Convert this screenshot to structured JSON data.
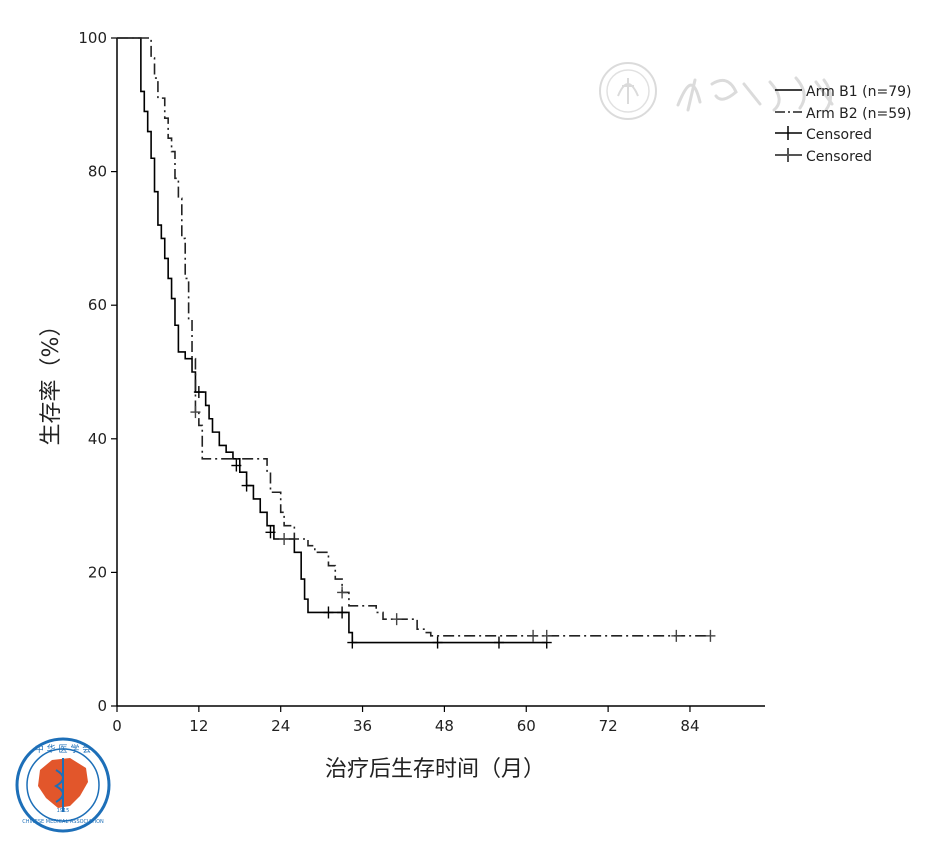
{
  "chart_data": {
    "type": "line",
    "subtype": "kaplan-meier step plot",
    "title": "",
    "xlabel": "治疗后生存时间（月）",
    "ylabel": "生存率（%）",
    "xlim": [
      0,
      95
    ],
    "ylim": [
      0,
      100
    ],
    "xticks": [
      0,
      12,
      24,
      36,
      48,
      60,
      72,
      84
    ],
    "yticks": [
      0,
      20,
      40,
      60,
      80,
      100
    ],
    "grid": false,
    "legend_position": "top-right",
    "legend": [
      {
        "label": "Arm B1 (n=79)",
        "style": "solid"
      },
      {
        "label": "Arm B2 (n=59)",
        "style": "dash-dot"
      },
      {
        "label": "Censored",
        "style": "censor-mark-dark"
      },
      {
        "label": "Censored",
        "style": "censor-mark-grey"
      }
    ],
    "series": [
      {
        "name": "Arm B1 (n=79)",
        "style": "solid",
        "color": "#000000",
        "x": [
          0,
          3.5,
          4,
          4.5,
          5,
          5.5,
          6,
          6.5,
          7,
          7.5,
          8,
          8.5,
          9,
          10,
          11,
          11.5,
          12,
          13,
          13.5,
          14,
          15,
          16,
          17,
          18,
          19,
          20,
          21,
          22,
          23,
          24,
          25,
          26,
          27,
          27.5,
          28,
          33,
          34,
          34.5,
          63
        ],
        "y": [
          100,
          92,
          89,
          86,
          82,
          77,
          72,
          70,
          67,
          64,
          61,
          57,
          53,
          52,
          50,
          47,
          47,
          45,
          43,
          41,
          39,
          38,
          37,
          35,
          33,
          31,
          29,
          27,
          25,
          25,
          25,
          23,
          19,
          16,
          14,
          14,
          11,
          9.5,
          9.5
        ]
      },
      {
        "name": "Arm B2 (n=59)",
        "style": "dash-dot",
        "color": "#222222",
        "x": [
          0,
          5,
          5.5,
          6,
          7,
          7.5,
          8,
          8.5,
          9,
          9.5,
          10,
          10.5,
          11,
          11.5,
          12,
          12.5,
          17,
          22,
          22.5,
          24,
          24.5,
          25.5,
          26,
          27,
          28,
          29,
          31,
          32,
          33,
          34,
          35,
          37,
          38,
          39,
          41,
          43,
          44,
          45,
          46,
          87
        ],
        "y": [
          100,
          97,
          94,
          91,
          88,
          85,
          83,
          79,
          76,
          70,
          64,
          58,
          52,
          44,
          42,
          37,
          37,
          35,
          32,
          29,
          27,
          27,
          25,
          25,
          24,
          23,
          21,
          19,
          17,
          15,
          15,
          15,
          14,
          13,
          13,
          13,
          11.5,
          11,
          10.5,
          10.5
        ]
      }
    ],
    "censored_marks": [
      {
        "series": "Arm B1 (n=79)",
        "points": [
          [
            12,
            47
          ],
          [
            17.5,
            36
          ],
          [
            19,
            33
          ],
          [
            22.5,
            26
          ],
          [
            31,
            14
          ],
          [
            33,
            14
          ],
          [
            34.5,
            9.5
          ],
          [
            47,
            9.5
          ],
          [
            56,
            9.5
          ],
          [
            63,
            9.5
          ]
        ]
      },
      {
        "series": "Arm B2 (n=59)",
        "points": [
          [
            11.5,
            44
          ],
          [
            24.5,
            25
          ],
          [
            33,
            17
          ],
          [
            41,
            13
          ],
          [
            61,
            10.5
          ],
          [
            63,
            10.5
          ],
          [
            82,
            10.5
          ],
          [
            87,
            10.5
          ]
        ]
      }
    ],
    "watermark_text": "中華醫學會",
    "logo_text": "中华医学会 CHINESE MEDICAL ASSOCIATION 1915"
  }
}
